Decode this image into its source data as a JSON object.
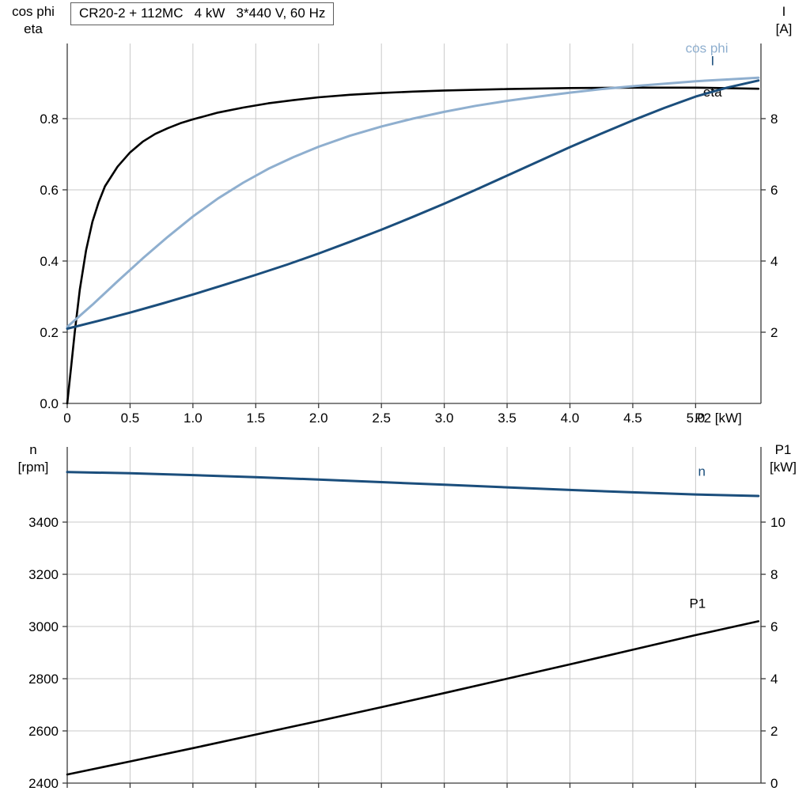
{
  "colors": {
    "black_curve": "#000000",
    "light_blue_curve": "#8FAFCF",
    "dark_blue_curve": "#1B4E7C",
    "grid": "#c9c9c9",
    "axis": "#3a3a3a",
    "text": "#000000"
  },
  "chart_data": [
    {
      "type": "line",
      "title": "CR20-2 + 112MC   4 kW   3*440 V, 60 Hz",
      "x_axis": {
        "label": "P2 [kW]",
        "min": 0,
        "max": 5.52,
        "ticks": [
          0,
          0.5,
          1.0,
          1.5,
          2.0,
          2.5,
          3.0,
          3.5,
          4.0,
          4.5,
          5.0
        ],
        "tick_labels": [
          "0",
          "0.5",
          "1.0",
          "1.5",
          "2.0",
          "2.5",
          "3.0",
          "3.5",
          "4.0",
          "4.5",
          "5.0"
        ]
      },
      "left_axis": {
        "title_lines": [
          "cos phi",
          "eta"
        ],
        "min": 0,
        "max": 1.011,
        "ticks": [
          0,
          0.2,
          0.4,
          0.6,
          0.8
        ],
        "tick_labels": [
          "0.0",
          "0.2",
          "0.4",
          "0.6",
          "0.8"
        ]
      },
      "right_axis": {
        "title_lines": [
          "I",
          "[A]"
        ],
        "min": 0,
        "max": 10.11,
        "ticks": [
          2,
          4,
          6,
          8
        ],
        "tick_labels": [
          "2",
          "4",
          "6",
          "8"
        ]
      },
      "grid": true,
      "legend_position": "curve-end-labels",
      "series": [
        {
          "name": "eta",
          "axis": "left",
          "color": "#000000",
          "width": 2.6,
          "label_x": 5.06,
          "label_y": 0.862,
          "points": [
            [
              0,
              0
            ],
            [
              0.03,
              0.1
            ],
            [
              0.06,
              0.2
            ],
            [
              0.1,
              0.32
            ],
            [
              0.15,
              0.43
            ],
            [
              0.2,
              0.51
            ],
            [
              0.25,
              0.565
            ],
            [
              0.3,
              0.61
            ],
            [
              0.4,
              0.665
            ],
            [
              0.5,
              0.705
            ],
            [
              0.6,
              0.735
            ],
            [
              0.7,
              0.757
            ],
            [
              0.8,
              0.773
            ],
            [
              0.9,
              0.787
            ],
            [
              1.0,
              0.798
            ],
            [
              1.2,
              0.817
            ],
            [
              1.4,
              0.831
            ],
            [
              1.6,
              0.843
            ],
            [
              1.8,
              0.852
            ],
            [
              2.0,
              0.86
            ],
            [
              2.25,
              0.867
            ],
            [
              2.5,
              0.872
            ],
            [
              2.75,
              0.876
            ],
            [
              3.0,
              0.879
            ],
            [
              3.5,
              0.883
            ],
            [
              4.0,
              0.886
            ],
            [
              4.5,
              0.887
            ],
            [
              5.0,
              0.887
            ],
            [
              5.5,
              0.884
            ]
          ]
        },
        {
          "name": "cos phi",
          "axis": "left",
          "color": "#8FAFCF",
          "width": 3,
          "label_x": 4.92,
          "label_y": 0.985,
          "points": [
            [
              0,
              0.215
            ],
            [
              0.2,
              0.277
            ],
            [
              0.4,
              0.343
            ],
            [
              0.6,
              0.407
            ],
            [
              0.8,
              0.468
            ],
            [
              1.0,
              0.525
            ],
            [
              1.2,
              0.576
            ],
            [
              1.4,
              0.62
            ],
            [
              1.6,
              0.659
            ],
            [
              1.8,
              0.692
            ],
            [
              2.0,
              0.721
            ],
            [
              2.25,
              0.752
            ],
            [
              2.5,
              0.778
            ],
            [
              2.75,
              0.8
            ],
            [
              3.0,
              0.819
            ],
            [
              3.25,
              0.836
            ],
            [
              3.5,
              0.85
            ],
            [
              3.75,
              0.862
            ],
            [
              4.0,
              0.873
            ],
            [
              4.25,
              0.883
            ],
            [
              4.5,
              0.891
            ],
            [
              4.75,
              0.898
            ],
            [
              5.0,
              0.905
            ],
            [
              5.25,
              0.91
            ],
            [
              5.5,
              0.915
            ]
          ]
        },
        {
          "name": "I",
          "axis": "right",
          "color": "#1B4E7C",
          "width": 3,
          "label_x": 5.12,
          "label_y": 9.5,
          "points": [
            [
              0,
              2.1
            ],
            [
              0.25,
              2.32
            ],
            [
              0.5,
              2.55
            ],
            [
              0.75,
              2.8
            ],
            [
              1.0,
              3.06
            ],
            [
              1.25,
              3.33
            ],
            [
              1.5,
              3.61
            ],
            [
              1.75,
              3.9
            ],
            [
              2.0,
              4.21
            ],
            [
              2.25,
              4.54
            ],
            [
              2.5,
              4.88
            ],
            [
              2.75,
              5.24
            ],
            [
              3.0,
              5.61
            ],
            [
              3.25,
              6.0
            ],
            [
              3.5,
              6.4
            ],
            [
              3.75,
              6.8
            ],
            [
              4.0,
              7.2
            ],
            [
              4.25,
              7.58
            ],
            [
              4.5,
              7.95
            ],
            [
              4.75,
              8.3
            ],
            [
              5.0,
              8.62
            ],
            [
              5.25,
              8.87
            ],
            [
              5.5,
              9.07
            ]
          ]
        }
      ]
    },
    {
      "type": "line",
      "title": "",
      "x_axis": {
        "label": "",
        "min": 0,
        "max": 5.52,
        "ticks": [
          0,
          0.5,
          1.0,
          1.5,
          2.0,
          2.5,
          3.0,
          3.5,
          4.0,
          4.5,
          5.0
        ],
        "tick_labels": []
      },
      "left_axis": {
        "title_lines": [
          "n",
          "[rpm]"
        ],
        "min": 2400,
        "max": 3688,
        "ticks": [
          2400,
          2600,
          2800,
          3000,
          3200,
          3400
        ],
        "tick_labels": [
          "2400",
          "2600",
          "2800",
          "3000",
          "3200",
          "3400"
        ]
      },
      "right_axis": {
        "title_lines": [
          "P1",
          "[kW]"
        ],
        "min": 0,
        "max": 12.88,
        "ticks": [
          0,
          2,
          4,
          6,
          8,
          10
        ],
        "tick_labels": [
          "0",
          "2",
          "4",
          "6",
          "8",
          "10"
        ]
      },
      "grid": true,
      "legend_position": "curve-end-labels",
      "series": [
        {
          "name": "n",
          "axis": "left",
          "color": "#1B4E7C",
          "width": 3,
          "label_x": 5.02,
          "label_y": 3578,
          "points": [
            [
              0,
              3592
            ],
            [
              0.5,
              3587
            ],
            [
              1.0,
              3580
            ],
            [
              1.5,
              3572
            ],
            [
              2.0,
              3563
            ],
            [
              2.5,
              3553
            ],
            [
              3.0,
              3543
            ],
            [
              3.5,
              3533
            ],
            [
              4.0,
              3523
            ],
            [
              4.5,
              3514
            ],
            [
              5.0,
              3506
            ],
            [
              5.5,
              3500
            ]
          ]
        },
        {
          "name": "P1",
          "axis": "right",
          "color": "#000000",
          "width": 2.6,
          "label_x": 4.95,
          "label_y": 6.72,
          "points": [
            [
              0,
              0.33
            ],
            [
              0.5,
              0.83
            ],
            [
              1.0,
              1.34
            ],
            [
              1.5,
              1.86
            ],
            [
              2.0,
              2.38
            ],
            [
              2.5,
              2.91
            ],
            [
              3.0,
              3.45
            ],
            [
              3.5,
              4.0
            ],
            [
              4.0,
              4.55
            ],
            [
              4.5,
              5.11
            ],
            [
              5.0,
              5.67
            ],
            [
              5.5,
              6.2
            ]
          ]
        }
      ]
    }
  ]
}
